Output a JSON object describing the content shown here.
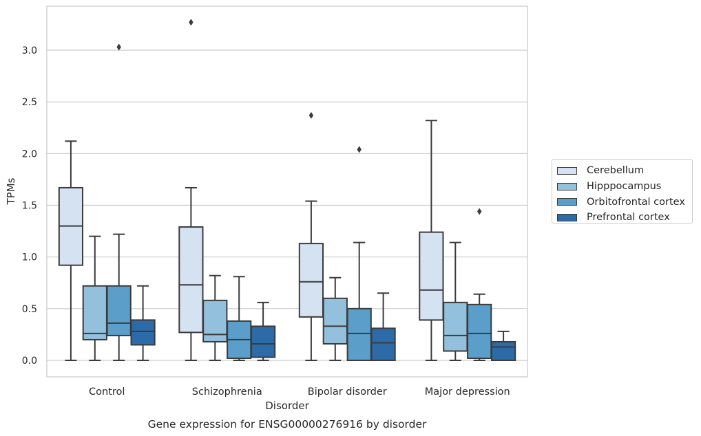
{
  "chart_data": {
    "type": "boxplot",
    "title": "",
    "caption": "Gene expression for ENSG00000276916 by disorder",
    "xlabel": "Disorder",
    "ylabel": "TPMs",
    "ylim": [
      -0.16,
      3.43
    ],
    "yticks": [
      "0.0",
      "0.5",
      "1.0",
      "1.5",
      "2.0",
      "2.5",
      "3.0"
    ],
    "grid": "horizontal",
    "legend_position": "right",
    "categories": [
      "Control",
      "Schizophrenia",
      "Bipolar disorder",
      "Major depression"
    ],
    "series": [
      {
        "name": "Cerebellum",
        "color": "#d4e2f2",
        "boxes": [
          {
            "whisker_low": 0.0,
            "q1": 0.92,
            "median": 1.3,
            "q3": 1.67,
            "whisker_high": 2.12,
            "outliers": []
          },
          {
            "whisker_low": 0.0,
            "q1": 0.27,
            "median": 0.73,
            "q3": 1.29,
            "whisker_high": 1.67,
            "outliers": [
              3.27
            ]
          },
          {
            "whisker_low": 0.0,
            "q1": 0.42,
            "median": 0.76,
            "q3": 1.13,
            "whisker_high": 1.54,
            "outliers": [
              2.37
            ]
          },
          {
            "whisker_low": 0.0,
            "q1": 0.39,
            "median": 0.68,
            "q3": 1.24,
            "whisker_high": 2.32,
            "outliers": []
          }
        ]
      },
      {
        "name": "Hipppocampus",
        "color": "#93c1dd",
        "boxes": [
          {
            "whisker_low": 0.0,
            "q1": 0.2,
            "median": 0.26,
            "q3": 0.72,
            "whisker_high": 1.2,
            "outliers": []
          },
          {
            "whisker_low": 0.0,
            "q1": 0.18,
            "median": 0.25,
            "q3": 0.58,
            "whisker_high": 0.82,
            "outliers": []
          },
          {
            "whisker_low": 0.0,
            "q1": 0.16,
            "median": 0.33,
            "q3": 0.6,
            "whisker_high": 0.8,
            "outliers": []
          },
          {
            "whisker_low": 0.0,
            "q1": 0.09,
            "median": 0.24,
            "q3": 0.56,
            "whisker_high": 1.14,
            "outliers": []
          }
        ]
      },
      {
        "name": "Orbitofrontal cortex",
        "color": "#5a9ec9",
        "boxes": [
          {
            "whisker_low": 0.0,
            "q1": 0.24,
            "median": 0.36,
            "q3": 0.72,
            "whisker_high": 1.22,
            "outliers": [
              3.03
            ]
          },
          {
            "whisker_low": 0.0,
            "q1": 0.02,
            "median": 0.2,
            "q3": 0.38,
            "whisker_high": 0.81,
            "outliers": []
          },
          {
            "whisker_low": 0.0,
            "q1": 0.0,
            "median": 0.26,
            "q3": 0.5,
            "whisker_high": 1.14,
            "outliers": [
              2.04
            ]
          },
          {
            "whisker_low": 0.0,
            "q1": 0.02,
            "median": 0.26,
            "q3": 0.54,
            "whisker_high": 0.64,
            "outliers": [
              1.44
            ]
          }
        ]
      },
      {
        "name": "Prefrontal cortex",
        "color": "#2d6aa8",
        "boxes": [
          {
            "whisker_low": 0.0,
            "q1": 0.15,
            "median": 0.28,
            "q3": 0.39,
            "whisker_high": 0.72,
            "outliers": []
          },
          {
            "whisker_low": 0.0,
            "q1": 0.03,
            "median": 0.16,
            "q3": 0.33,
            "whisker_high": 0.56,
            "outliers": []
          },
          {
            "whisker_low": 0.0,
            "q1": 0.0,
            "median": 0.17,
            "q3": 0.31,
            "whisker_high": 0.65,
            "outliers": []
          },
          {
            "whisker_low": 0.0,
            "q1": 0.0,
            "median": 0.13,
            "q3": 0.18,
            "whisker_high": 0.28,
            "outliers": []
          }
        ]
      }
    ]
  }
}
